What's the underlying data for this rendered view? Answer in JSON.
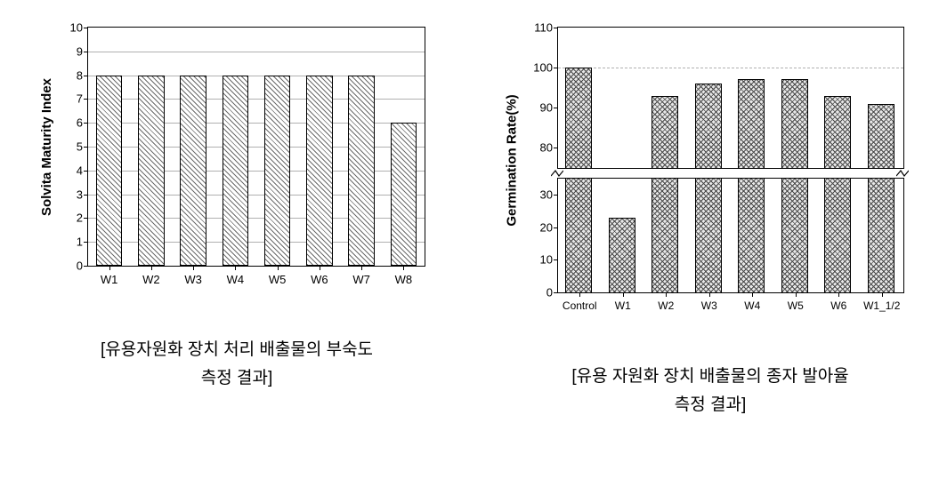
{
  "chart1": {
    "type": "bar",
    "ylabel": "Solvita Maturity Index",
    "categories": [
      "W1",
      "W2",
      "W3",
      "W4",
      "W5",
      "W6",
      "W7",
      "W8"
    ],
    "values": [
      8,
      8,
      8,
      8,
      8,
      8,
      8,
      6
    ],
    "ylim": [
      0,
      10
    ],
    "ytick_step": 1,
    "bar_color": "#6b6b6b",
    "background_color": "#ffffff",
    "grid_color": "#b0b0b0",
    "axis_color": "#000000",
    "font_family": "Arial",
    "ylabel_fontsize": 15,
    "tick_fontsize": 13,
    "bar_width_ratio": 0.62,
    "hatch": "///"
  },
  "chart2": {
    "type": "bar_broken_axis",
    "ylabel": "Germination Rate(%)",
    "categories": [
      "Control",
      "W1",
      "W2",
      "W3",
      "W4",
      "W5",
      "W6",
      "W1_1/2"
    ],
    "values": [
      100,
      23,
      93,
      96,
      97,
      97,
      93,
      91
    ],
    "ylim_upper": [
      75,
      110
    ],
    "ytick_step_upper": 10,
    "dashed_line_upper_at": 100,
    "ylim_lower": [
      0,
      35
    ],
    "ytick_step_lower": 10,
    "bar_color": "#4a4a4a",
    "background_color": "#ffffff",
    "grid_color": "#b0b0b0",
    "axis_color": "#000000",
    "font_family": "Arial",
    "ylabel_fontsize": 15,
    "tick_fontsize": 13,
    "bar_width_ratio": 0.62,
    "hatch": "xxx"
  },
  "captions": {
    "left_line1": "[유용자원화 장치 처리  배출물의 부숙도",
    "left_line2": "측정 결과]",
    "right_line1": "[유용 자원화 장치 배출물의 종자 발아율",
    "right_line2": "측정 결과]"
  }
}
